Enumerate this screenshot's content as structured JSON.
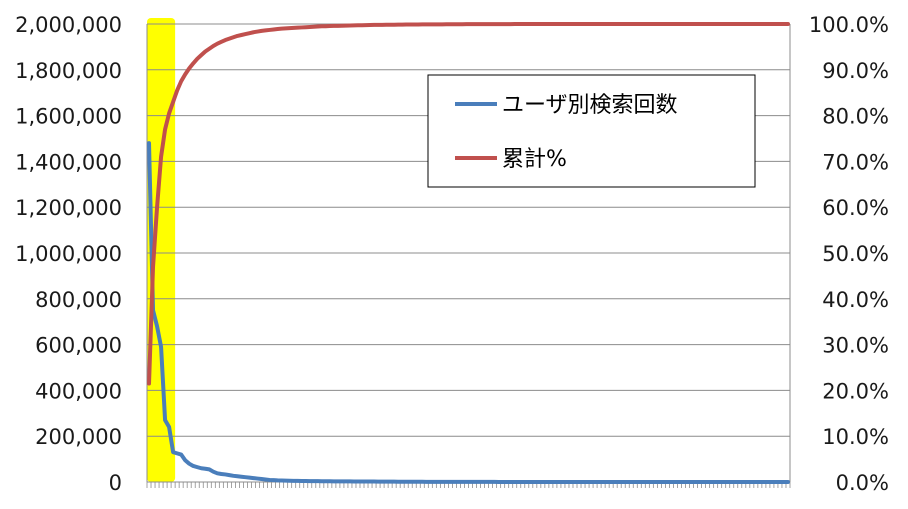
{
  "chart_data": {
    "type": "line",
    "title": "",
    "xlabel": "",
    "ylabel": "",
    "y_left": {
      "min": 0,
      "max": 2000000,
      "ticks": [
        0,
        200000,
        400000,
        600000,
        800000,
        1000000,
        1200000,
        1400000,
        1600000,
        1800000,
        2000000
      ],
      "tick_labels": [
        "0",
        "200,000",
        "400,000",
        "600,000",
        "800,000",
        "1,000,000",
        "1,200,000",
        "1,400,000",
        "1,600,000",
        "1,800,000",
        "2,000,000"
      ]
    },
    "y_right": {
      "min": 0,
      "max": 100,
      "ticks": [
        0,
        10,
        20,
        30,
        40,
        50,
        60,
        70,
        80,
        90,
        100
      ],
      "tick_labels": [
        "0.0%",
        "10.0%",
        "20.0%",
        "30.0%",
        "40.0%",
        "50.0%",
        "60.0%",
        "70.0%",
        "80.0%",
        "90.0%",
        "100.0%"
      ]
    },
    "grid": "horizontal",
    "category_count": 160,
    "highlight": {
      "from_index": 0,
      "to_index": 6,
      "color": "#ffff00"
    },
    "legend": {
      "position": "right-inside"
    },
    "series": [
      {
        "name": "ユーザ別検索回数",
        "axis": "left",
        "color": "#4a7ebb",
        "values": [
          1480000,
          750000,
          680000,
          590000,
          270000,
          240000,
          130000,
          125000,
          120000,
          95000,
          80000,
          70000,
          65000,
          60000,
          58000,
          55000,
          45000,
          38000,
          35000,
          33000,
          30000,
          27000,
          25000,
          23000,
          21000,
          19000,
          17000,
          15000,
          13000,
          11000,
          9000,
          8000,
          7000,
          6500,
          6000,
          5500,
          5000,
          4800,
          4500,
          4200,
          4000,
          3800,
          3600,
          3400,
          3200,
          3000,
          2900,
          2800,
          2700,
          2600,
          2500,
          2400,
          2300,
          2200,
          2100,
          2000,
          1900,
          1800,
          1700,
          1600,
          1500,
          1400,
          1300,
          1200,
          1100,
          1000,
          950,
          900,
          850,
          800,
          750,
          700,
          650,
          600,
          550,
          500,
          480,
          460,
          440,
          420,
          400,
          380,
          360,
          340,
          320,
          300,
          290,
          280,
          270,
          260,
          250,
          240,
          230,
          220,
          210,
          200,
          190,
          180,
          170,
          160,
          150,
          140,
          130,
          120,
          110,
          100,
          95,
          90,
          85,
          80,
          75,
          70,
          65,
          60,
          55,
          50,
          48,
          46,
          44,
          42,
          40,
          38,
          36,
          34,
          32,
          30,
          28,
          26,
          24,
          22,
          20,
          19,
          18,
          17,
          16,
          15,
          14,
          13,
          12,
          11,
          10,
          9,
          8,
          7,
          6,
          5,
          5,
          4,
          4,
          3,
          3,
          2,
          2,
          2,
          1,
          1,
          1,
          1,
          1,
          1
        ]
      },
      {
        "name": "累計%",
        "axis": "right",
        "color": "#c0504d",
        "values": [
          21.5,
          47,
          60,
          71,
          77,
          80.5,
          83,
          85.5,
          87.5,
          89,
          90.3,
          91.4,
          92.4,
          93.2,
          94,
          94.6,
          95.2,
          95.7,
          96.1,
          96.5,
          96.8,
          97.1,
          97.4,
          97.6,
          97.8,
          98,
          98.2,
          98.35,
          98.5,
          98.6,
          98.7,
          98.8,
          98.9,
          99,
          99.05,
          99.1,
          99.15,
          99.2,
          99.25,
          99.3,
          99.35,
          99.4,
          99.45,
          99.5,
          99.52,
          99.55,
          99.58,
          99.6,
          99.62,
          99.65,
          99.67,
          99.7,
          99.72,
          99.74,
          99.76,
          99.78,
          99.8,
          99.81,
          99.82,
          99.83,
          99.84,
          99.85,
          99.86,
          99.87,
          99.88,
          99.89,
          99.9,
          99.9,
          99.91,
          99.91,
          99.92,
          99.92,
          99.93,
          99.93,
          99.94,
          99.94,
          99.95,
          99.95,
          99.95,
          99.96,
          99.96,
          99.96,
          99.97,
          99.97,
          99.97,
          99.97,
          99.98,
          99.98,
          99.98,
          99.98,
          99.98,
          99.99,
          99.99,
          99.99,
          99.99,
          99.99,
          99.99,
          99.99,
          100,
          100,
          100,
          100,
          100,
          100,
          100,
          100,
          100,
          100,
          100,
          100,
          100,
          100,
          100,
          100,
          100,
          100,
          100,
          100,
          100,
          100,
          100,
          100,
          100,
          100,
          100,
          100,
          100,
          100,
          100,
          100,
          100,
          100,
          100,
          100,
          100,
          100,
          100,
          100,
          100,
          100,
          100,
          100,
          100,
          100,
          100,
          100,
          100,
          100,
          100,
          100,
          100,
          100,
          100,
          100,
          100,
          100,
          100,
          100,
          100,
          100
        ]
      }
    ]
  }
}
